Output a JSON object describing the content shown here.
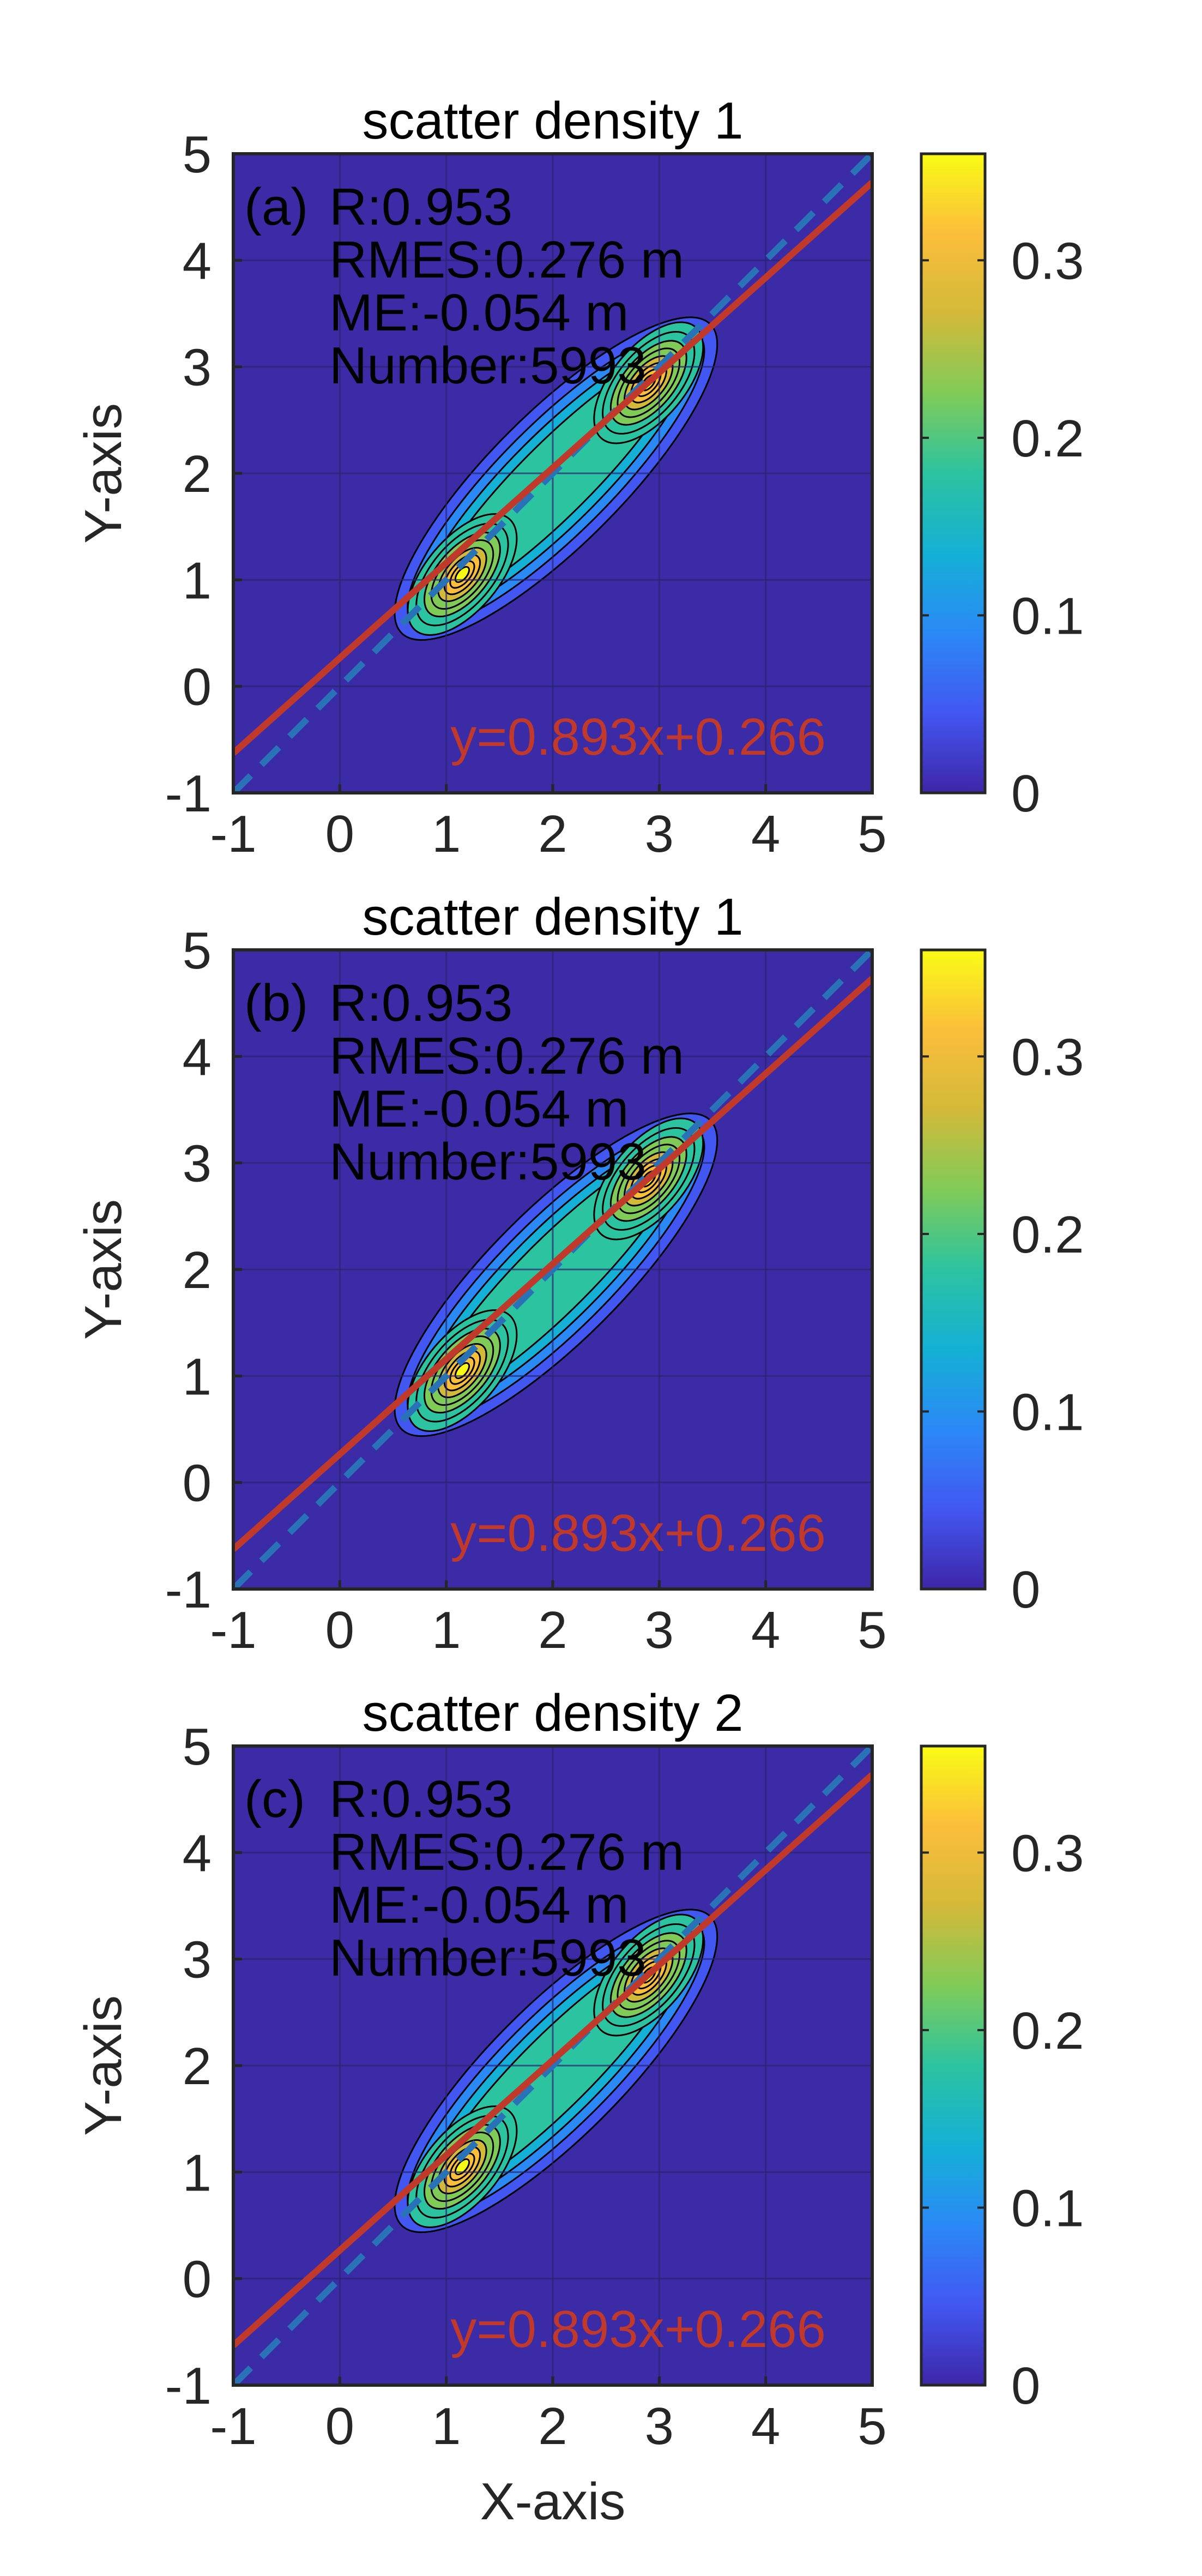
{
  "colors": {
    "background": "#3b2ba6",
    "grid": "#2a2470",
    "fit_line": "#c0392b",
    "identity_line": "#2a72b8",
    "contour": "#000000",
    "equation_text": "#c0392b",
    "colormap": [
      "#3e26a8",
      "#4257f2",
      "#2b89f6",
      "#14b0d5",
      "#2cc3a0",
      "#80cb58",
      "#d3b939",
      "#fbbe3b",
      "#f9fb15"
    ]
  },
  "chart_data": [
    {
      "type": "contour",
      "title": "scatter density 1",
      "panel_label": "(a)",
      "ylabel": "Y-axis",
      "xlabel": "",
      "xlim": [
        -1,
        5
      ],
      "ylim": [
        -1,
        5
      ],
      "xticks": [
        "-1",
        "0",
        "1",
        "2",
        "3",
        "4",
        "5"
      ],
      "yticks": [
        "-1",
        "0",
        "1",
        "2",
        "3",
        "4",
        "5"
      ],
      "grid": true,
      "stats": [
        "R:0.953",
        "RMES:0.276 m",
        "ME:-0.054 m",
        "Number:5993"
      ],
      "equation": "y=0.893x+0.266",
      "fit": {
        "slope": 0.893,
        "intercept": 0.266
      },
      "identity_line": {
        "slope": 1,
        "intercept": 0
      },
      "density_peaks": [
        {
          "x": 1.15,
          "y": 1.05,
          "value": 0.34
        },
        {
          "x": 2.9,
          "y": 2.85,
          "value": 0.33
        }
      ],
      "colorbar": {
        "ticks": [
          "0",
          "0.1",
          "0.2",
          "0.3"
        ],
        "range": [
          0,
          0.36
        ]
      }
    },
    {
      "type": "contour",
      "title": "scatter density 1",
      "panel_label": "(b)",
      "ylabel": "Y-axis",
      "xlabel": "",
      "xlim": [
        -1,
        5
      ],
      "ylim": [
        -1,
        5
      ],
      "xticks": [
        "-1",
        "0",
        "1",
        "2",
        "3",
        "4",
        "5"
      ],
      "yticks": [
        "-1",
        "0",
        "1",
        "2",
        "3",
        "4",
        "5"
      ],
      "grid": true,
      "stats": [
        "R:0.953",
        "RMES:0.276 m",
        "ME:-0.054 m",
        "Number:5993"
      ],
      "equation": "y=0.893x+0.266",
      "fit": {
        "slope": 0.893,
        "intercept": 0.266
      },
      "identity_line": {
        "slope": 1,
        "intercept": 0
      },
      "density_peaks": [
        {
          "x": 1.15,
          "y": 1.05,
          "value": 0.34
        },
        {
          "x": 2.9,
          "y": 2.85,
          "value": 0.33
        }
      ],
      "colorbar": {
        "ticks": [
          "0",
          "0.1",
          "0.2",
          "0.3"
        ],
        "range": [
          0,
          0.36
        ]
      }
    },
    {
      "type": "contour",
      "title": "scatter density 2",
      "panel_label": "(c)",
      "ylabel": "Y-axis",
      "xlabel": "X-axis",
      "xlim": [
        -1,
        5
      ],
      "ylim": [
        -1,
        5
      ],
      "xticks": [
        "-1",
        "0",
        "1",
        "2",
        "3",
        "4",
        "5"
      ],
      "yticks": [
        "-1",
        "0",
        "1",
        "2",
        "3",
        "4",
        "5"
      ],
      "grid": true,
      "stats": [
        "R:0.953",
        "RMES:0.276 m",
        "ME:-0.054 m",
        "Number:5993"
      ],
      "equation": "y=0.893x+0.266",
      "fit": {
        "slope": 0.893,
        "intercept": 0.266
      },
      "identity_line": {
        "slope": 1,
        "intercept": 0
      },
      "density_peaks": [
        {
          "x": 1.15,
          "y": 1.05,
          "value": 0.34
        },
        {
          "x": 2.9,
          "y": 2.85,
          "value": 0.33
        }
      ],
      "colorbar": {
        "ticks": [
          "0",
          "0.1",
          "0.2",
          "0.3"
        ],
        "range": [
          0,
          0.36
        ]
      }
    }
  ]
}
